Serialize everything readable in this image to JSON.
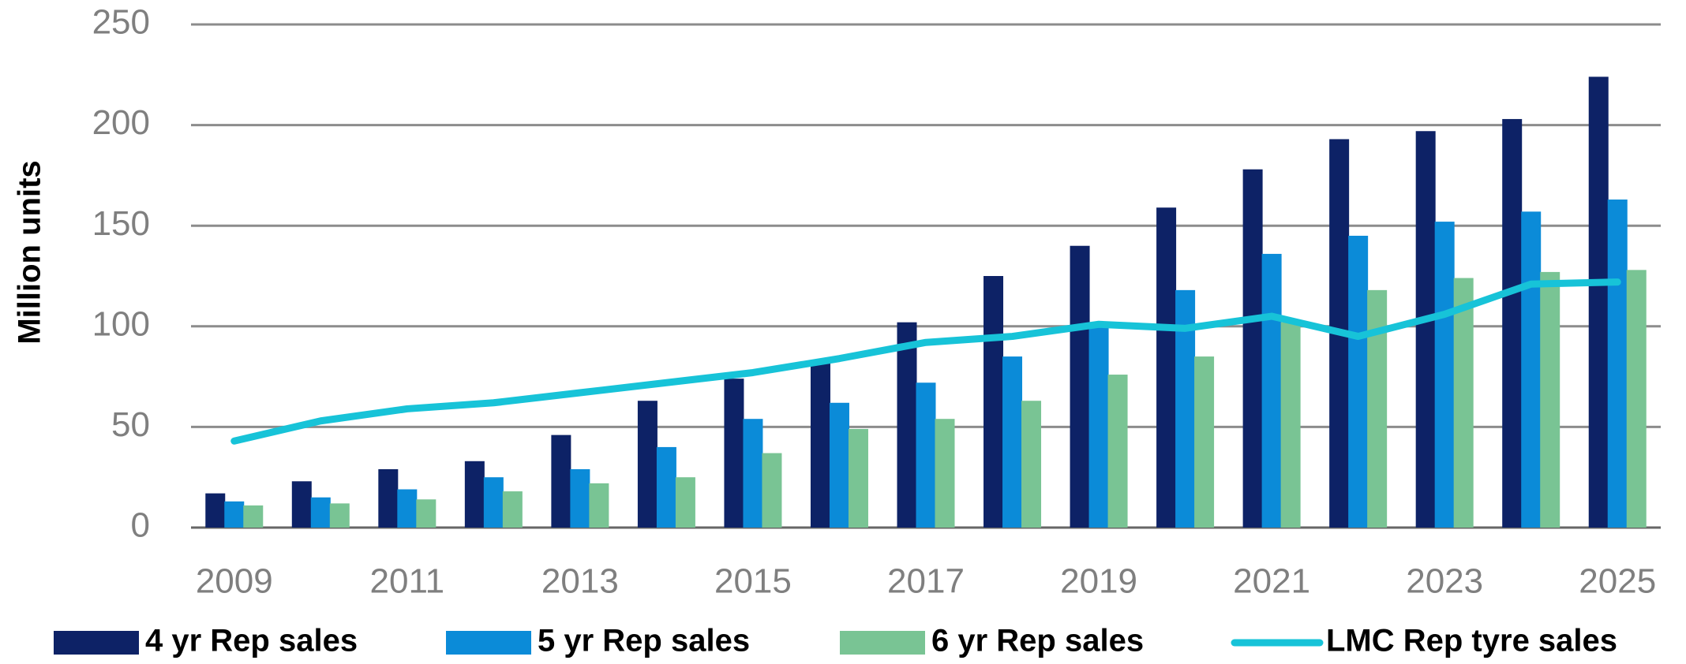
{
  "chart_data": {
    "type": "bar",
    "y_label": "Million units",
    "categories": [
      "2009",
      null,
      "2011",
      null,
      "2013",
      null,
      "2015",
      null,
      "2017",
      null,
      "2019",
      null,
      "2021",
      null,
      "2023",
      null,
      "2025"
    ],
    "ylim": [
      0,
      250
    ],
    "yticks": [
      0,
      50,
      100,
      150,
      200,
      250
    ],
    "grid": true,
    "series": [
      {
        "name": "4 yr Rep sales",
        "color": "#0d2266",
        "type": "bar",
        "values": [
          17,
          23,
          29,
          33,
          46,
          63,
          74,
          83,
          102,
          125,
          140,
          159,
          178,
          193,
          197,
          203,
          224
        ]
      },
      {
        "name": "5 yr Rep sales",
        "color": "#0b8bd8",
        "type": "bar",
        "values": [
          13,
          15,
          19,
          25,
          29,
          40,
          54,
          62,
          72,
          85,
          102,
          118,
          136,
          145,
          152,
          157,
          163
        ]
      },
      {
        "name": "6 yr Rep sales",
        "color": "#79c494",
        "type": "bar",
        "values": [
          11,
          12,
          14,
          18,
          22,
          25,
          37,
          49,
          54,
          63,
          76,
          85,
          102,
          118,
          124,
          127,
          128
        ]
      },
      {
        "name": "LMC Rep tyre sales",
        "color": "#17c3d8",
        "type": "line",
        "values": [
          43,
          53,
          59,
          62,
          67,
          72,
          77,
          84,
          92,
          95,
          101,
          99,
          105,
          95,
          106,
          121,
          122
        ]
      }
    ]
  }
}
